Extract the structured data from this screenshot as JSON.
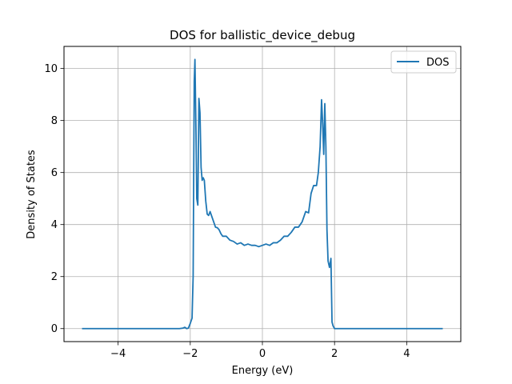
{
  "chart_data": {
    "type": "line",
    "title": "DOS for ballistic_device_debug",
    "xlabel": "Energy (eV)",
    "ylabel": "Density of States",
    "xlim": [
      -5.5,
      5.5
    ],
    "ylim": [
      -0.5,
      10.85
    ],
    "xticks": [
      -4,
      -2,
      0,
      2,
      4
    ],
    "xtick_labels": [
      "−4",
      "−2",
      "0",
      "2",
      "4"
    ],
    "yticks": [
      0,
      2,
      4,
      6,
      8,
      10
    ],
    "ytick_labels": [
      "0",
      "2",
      "4",
      "6",
      "8",
      "10"
    ],
    "grid": true,
    "legend": {
      "position": "top-right",
      "entries": [
        "DOS"
      ]
    },
    "series": [
      {
        "name": "DOS",
        "color": "#1f77b4",
        "x": [
          -5.0,
          -2.3,
          -2.2,
          -2.15,
          -2.1,
          -2.05,
          -2.0,
          -1.95,
          -1.92,
          -1.89,
          -1.87,
          -1.84,
          -1.82,
          -1.79,
          -1.76,
          -1.73,
          -1.7,
          -1.67,
          -1.64,
          -1.61,
          -1.57,
          -1.53,
          -1.49,
          -1.45,
          -1.4,
          -1.35,
          -1.3,
          -1.25,
          -1.2,
          -1.15,
          -1.1,
          -1.0,
          -0.9,
          -0.8,
          -0.7,
          -0.6,
          -0.5,
          -0.4,
          -0.3,
          -0.2,
          -0.1,
          0.0,
          0.1,
          0.2,
          0.3,
          0.4,
          0.5,
          0.6,
          0.7,
          0.8,
          0.9,
          1.0,
          1.1,
          1.2,
          1.28,
          1.35,
          1.42,
          1.5,
          1.55,
          1.6,
          1.64,
          1.67,
          1.7,
          1.73,
          1.76,
          1.79,
          1.82,
          1.86,
          1.9,
          1.93,
          1.96,
          2.0,
          2.02,
          2.05,
          2.1,
          2.2,
          5.0
        ],
        "y": [
          0.0,
          0.0,
          0.02,
          0.05,
          0.0,
          0.02,
          0.2,
          0.4,
          2.0,
          9.5,
          10.35,
          7.5,
          5.0,
          4.75,
          8.85,
          8.3,
          6.2,
          5.7,
          5.8,
          5.7,
          4.9,
          4.4,
          4.35,
          4.5,
          4.3,
          4.1,
          3.9,
          3.88,
          3.8,
          3.65,
          3.55,
          3.55,
          3.4,
          3.35,
          3.25,
          3.3,
          3.2,
          3.25,
          3.2,
          3.2,
          3.15,
          3.2,
          3.25,
          3.2,
          3.3,
          3.3,
          3.4,
          3.55,
          3.55,
          3.7,
          3.9,
          3.9,
          4.1,
          4.5,
          4.45,
          5.2,
          5.5,
          5.5,
          6.0,
          7.0,
          8.8,
          7.9,
          6.7,
          8.65,
          7.0,
          3.8,
          2.6,
          2.35,
          2.7,
          0.25,
          0.1,
          0.0,
          0.0,
          0.0,
          0.0,
          0.0,
          0.0
        ]
      }
    ]
  }
}
